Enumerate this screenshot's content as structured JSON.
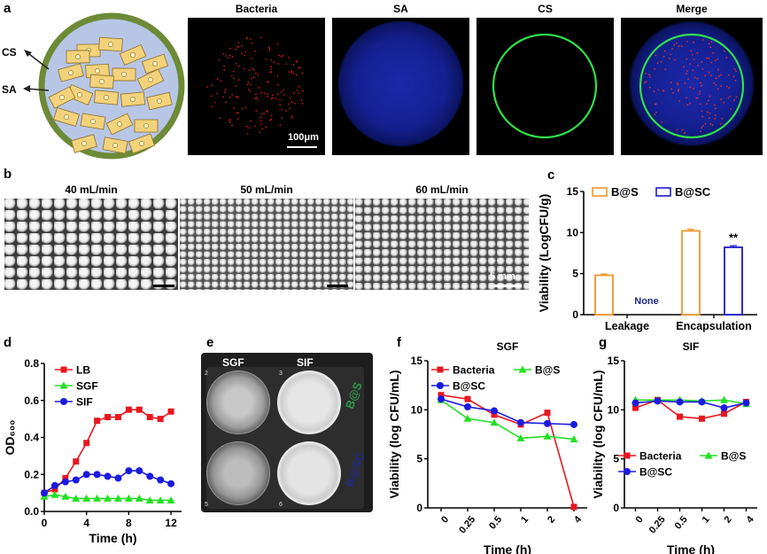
{
  "panels": {
    "a": {
      "label": "a",
      "schematic": {
        "cs_label": "CS",
        "sa_label": "SA"
      },
      "images": [
        {
          "title": "Bacteria"
        },
        {
          "title": "SA"
        },
        {
          "title": "CS"
        },
        {
          "title": "Merge"
        }
      ],
      "scale_bar": "100μm"
    },
    "b": {
      "label": "b",
      "images": [
        {
          "title": "40 mL/min"
        },
        {
          "title": "50 mL/min"
        },
        {
          "title": "60 mL/min"
        }
      ],
      "scale_bar": "5 mm"
    },
    "c": {
      "label": "c"
    },
    "d": {
      "label": "d"
    },
    "e": {
      "label": "e",
      "columns": [
        "SGF",
        "SIF"
      ],
      "rows": [
        "B@S",
        "B@SC"
      ],
      "well_numbers": [
        "2",
        "3",
        "5",
        "6"
      ]
    },
    "f": {
      "label": "f"
    },
    "g": {
      "label": "g"
    }
  },
  "colors": {
    "bacteria_red": "#e8161e",
    "bs_green": "#22e022",
    "bsc_blue": "#1a1ae0",
    "bar_orange": "#f0962a",
    "bar_blue": "#1a1acc",
    "label_green": "#2e9a4a",
    "label_navy": "#1f2a8c"
  },
  "chart_data": [
    {
      "id": "c",
      "type": "bar",
      "categories": [
        "Leakage",
        "Encapsulation"
      ],
      "series": [
        {
          "name": "B@S",
          "values": [
            4.8,
            10.2
          ],
          "errors": [
            0.15,
            0.2
          ],
          "color": "#f0962a"
        },
        {
          "name": "B@SC",
          "values": [
            null,
            8.2
          ],
          "errors": [
            null,
            0.2
          ],
          "color": "#1a1acc"
        }
      ],
      "annotations": [
        "None",
        "**"
      ],
      "ylabel": "Viability (LogCFU/g)",
      "ylim": [
        0,
        15
      ],
      "yticks": [
        0,
        5,
        10,
        15
      ],
      "legend": "top"
    },
    {
      "id": "d",
      "type": "line",
      "xlabel": "Time (h)",
      "ylabel": "OD₆₀₀",
      "xlim": [
        0,
        13
      ],
      "ylim": [
        0,
        0.8
      ],
      "xticks": [
        0,
        4,
        8,
        12
      ],
      "yticks": [
        0.0,
        0.2,
        0.4,
        0.6,
        0.8
      ],
      "legend": "top-left",
      "series": [
        {
          "name": "LB",
          "color": "#e8161e",
          "marker": "square",
          "x": [
            0,
            1,
            2,
            3,
            4,
            5,
            6,
            7,
            8,
            9,
            10,
            11,
            12
          ],
          "y": [
            0.1,
            0.12,
            0.18,
            0.27,
            0.37,
            0.49,
            0.51,
            0.51,
            0.55,
            0.55,
            0.51,
            0.5,
            0.54
          ]
        },
        {
          "name": "SGF",
          "color": "#22e022",
          "marker": "triangle",
          "x": [
            0,
            1,
            2,
            3,
            4,
            5,
            6,
            7,
            8,
            9,
            10,
            11,
            12
          ],
          "y": [
            0.08,
            0.09,
            0.08,
            0.07,
            0.07,
            0.07,
            0.07,
            0.07,
            0.07,
            0.07,
            0.06,
            0.06,
            0.06
          ]
        },
        {
          "name": "SIF",
          "color": "#1a1ae0",
          "marker": "circle",
          "x": [
            0,
            1,
            2,
            3,
            4,
            5,
            6,
            7,
            8,
            9,
            10,
            11,
            12
          ],
          "y": [
            0.1,
            0.14,
            0.16,
            0.17,
            0.2,
            0.2,
            0.19,
            0.18,
            0.22,
            0.22,
            0.19,
            0.17,
            0.15
          ]
        }
      ]
    },
    {
      "id": "f",
      "type": "line",
      "title": "SGF",
      "xlabel": "Time (h)",
      "ylabel": "Viability (log CFU/mL)",
      "categories": [
        "0",
        "0.25",
        "0.5",
        "1",
        "2",
        "4"
      ],
      "ylim": [
        0,
        15
      ],
      "yticks": [
        0,
        5,
        10,
        15
      ],
      "legend": "top",
      "series": [
        {
          "name": "Bacteria",
          "color": "#e8161e",
          "marker": "square",
          "values": [
            11.5,
            11.1,
            9.5,
            8.5,
            9.7,
            0.1
          ]
        },
        {
          "name": "B@S",
          "color": "#22e022",
          "marker": "triangle",
          "values": [
            11.0,
            9.1,
            8.7,
            7.1,
            7.3,
            7.0
          ]
        },
        {
          "name": "B@SC",
          "color": "#1a1ae0",
          "marker": "circle",
          "values": [
            11.1,
            10.3,
            9.9,
            8.7,
            8.6,
            8.5
          ]
        }
      ]
    },
    {
      "id": "g",
      "type": "line",
      "title": "SIF",
      "xlabel": "Time (h)",
      "ylabel": "Viability (log CFU/mL)",
      "categories": [
        "0",
        "0.25",
        "0.5",
        "1",
        "2",
        "4"
      ],
      "ylim": [
        0,
        15
      ],
      "yticks": [
        0,
        5,
        10,
        15
      ],
      "legend": "bottom",
      "series": [
        {
          "name": "Bacteria",
          "color": "#e8161e",
          "marker": "square",
          "values": [
            10.2,
            11.0,
            9.3,
            9.1,
            9.6,
            10.8
          ]
        },
        {
          "name": "B@S",
          "color": "#22e022",
          "marker": "triangle",
          "values": [
            11.0,
            11.0,
            11.0,
            10.9,
            11.0,
            10.6
          ]
        },
        {
          "name": "B@SC",
          "color": "#1a1ae0",
          "marker": "circle",
          "values": [
            10.7,
            10.9,
            10.8,
            10.8,
            10.2,
            10.7
          ]
        }
      ]
    }
  ]
}
